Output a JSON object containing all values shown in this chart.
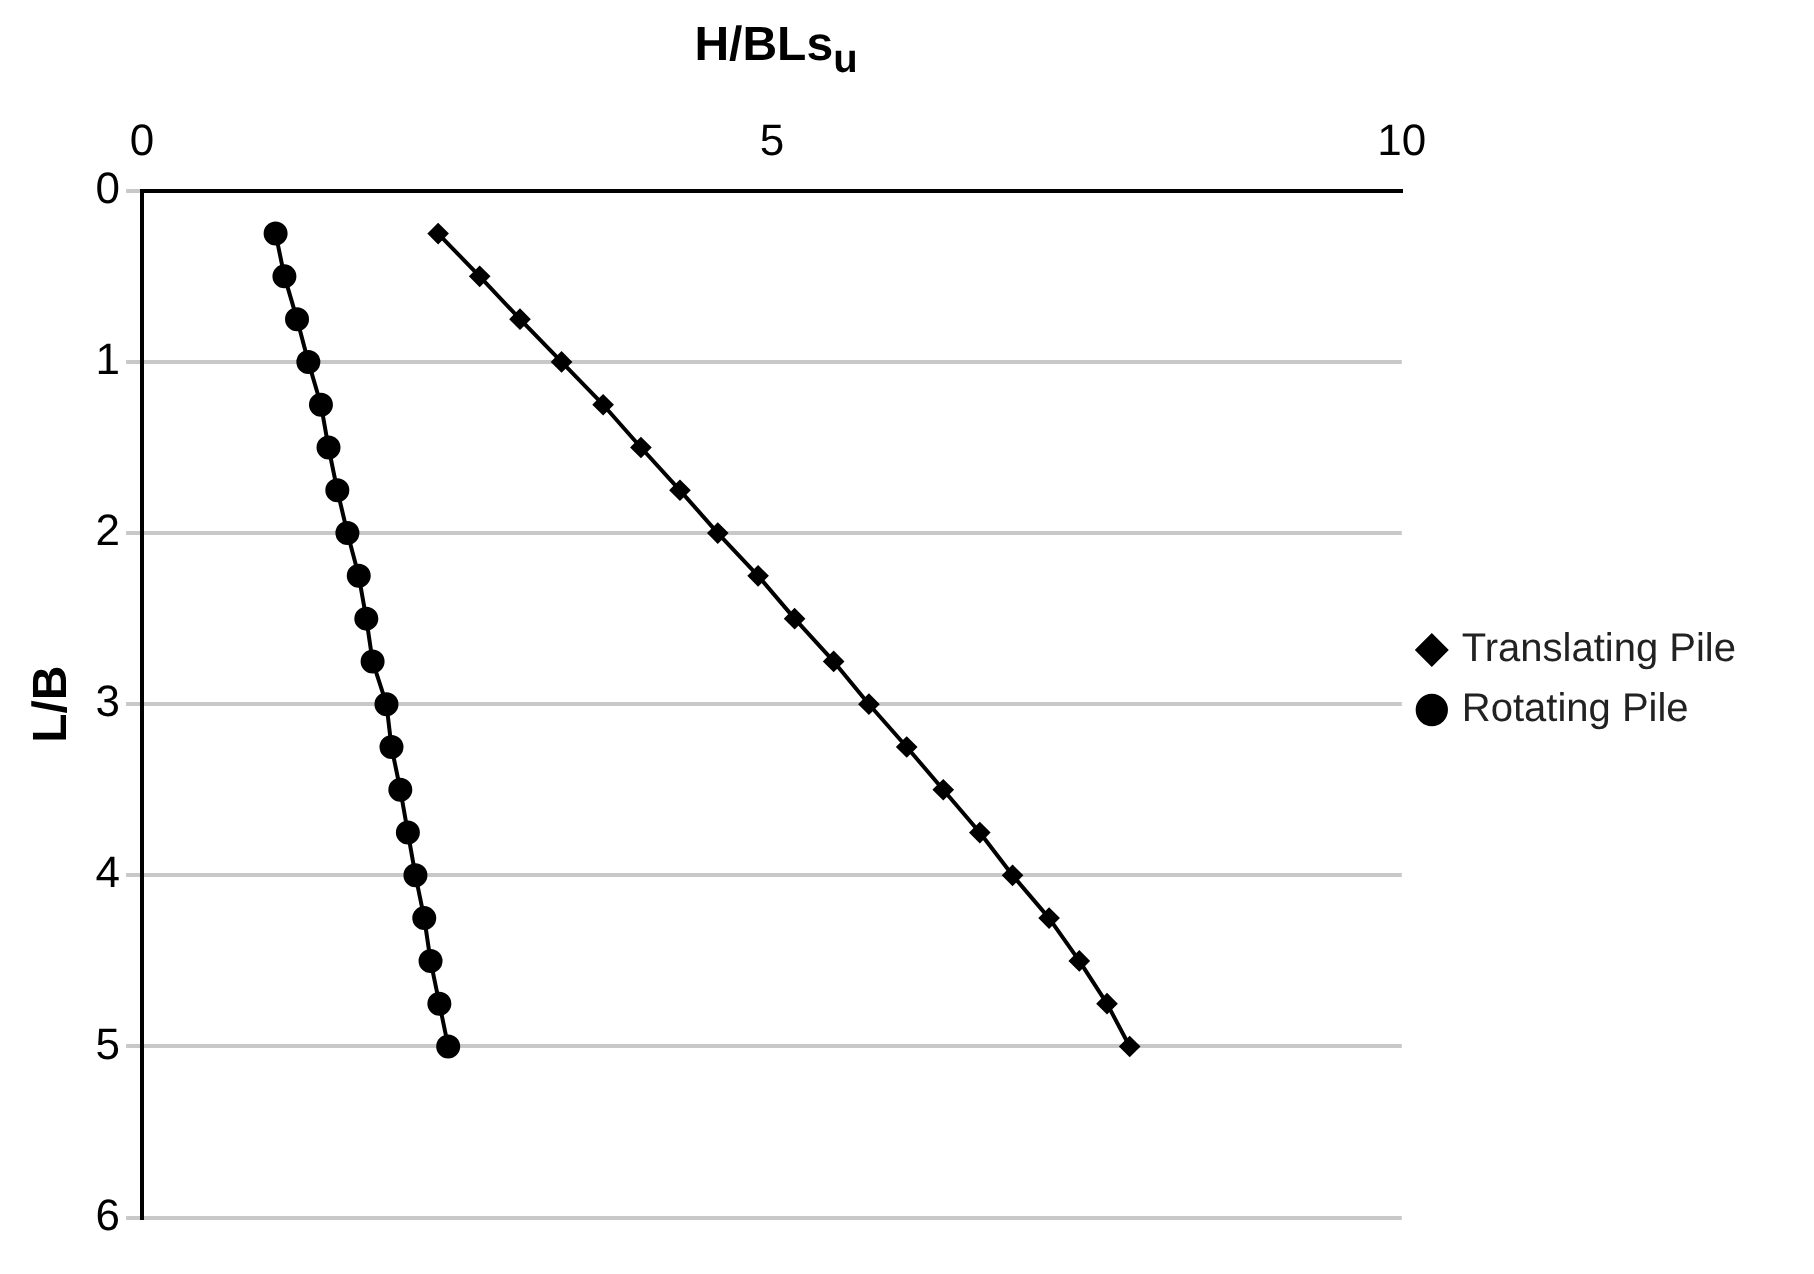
{
  "chart_data": {
    "type": "line",
    "xlabel": "H/BLs$_{u}$",
    "ylabel": "L/B",
    "xlim": [
      0,
      10
    ],
    "xticks": [
      0,
      5,
      10
    ],
    "ylim": [
      6,
      0
    ],
    "yticks": [
      0,
      1,
      2,
      3,
      4,
      5,
      6
    ],
    "grid": "y",
    "legend": "right",
    "line_style": "solid",
    "series": [
      {
        "name": "Translating Pile",
        "color": "#000000",
        "marker": "diamond",
        "x": [
          2.35,
          2.68,
          3.0,
          3.33,
          3.66,
          3.96,
          4.27,
          4.57,
          4.89,
          5.18,
          5.49,
          5.77,
          6.07,
          6.36,
          6.65,
          6.91,
          7.2,
          7.44,
          7.66,
          7.84
        ],
        "values": [
          0.25,
          0.5,
          0.75,
          1,
          1.25,
          1.5,
          1.75,
          2,
          2.25,
          2.5,
          2.75,
          3,
          3.25,
          3.5,
          3.75,
          4,
          4.25,
          4.5,
          4.75,
          5
        ]
      },
      {
        "name": "Rotating Pile",
        "color": "#000000",
        "marker": "circle",
        "x": [
          1.06,
          1.13,
          1.23,
          1.32,
          1.42,
          1.48,
          1.55,
          1.63,
          1.72,
          1.78,
          1.83,
          1.94,
          1.98,
          2.05,
          2.11,
          2.17,
          2.24,
          2.29,
          2.36,
          2.43
        ],
        "values": [
          0.25,
          0.5,
          0.75,
          1,
          1.25,
          1.5,
          1.75,
          2,
          2.25,
          2.5,
          2.75,
          3,
          3.25,
          3.5,
          3.75,
          4,
          4.25,
          4.5,
          4.75,
          5
        ]
      }
    ]
  }
}
